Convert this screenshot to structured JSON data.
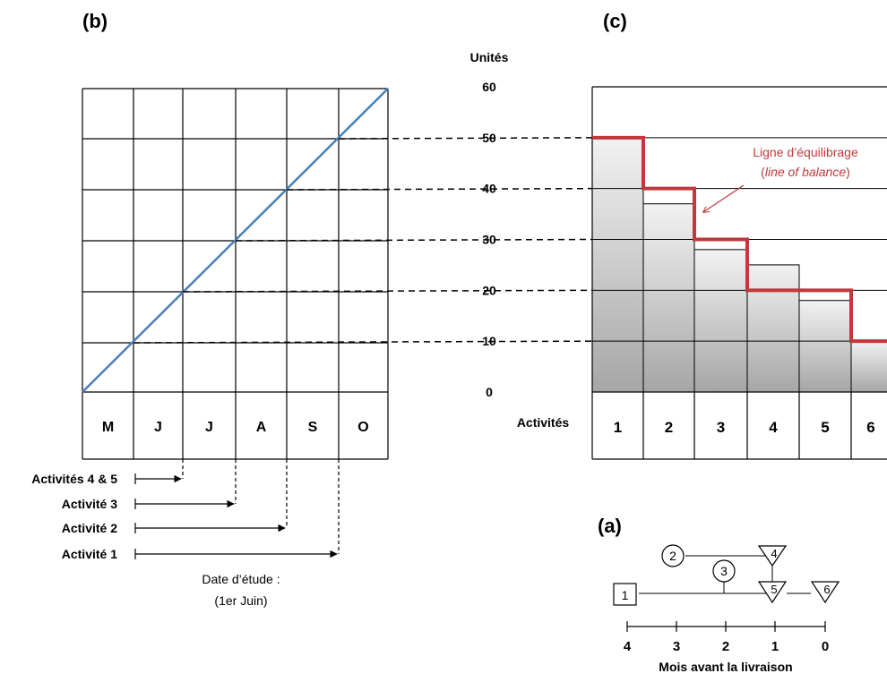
{
  "panel_b": {
    "label": "(b)",
    "months": [
      "M",
      "J",
      "J",
      "A",
      "S",
      "O"
    ],
    "activities": [
      {
        "label": "Activités 4 & 5"
      },
      {
        "label": "Activité 3"
      },
      {
        "label": "Activité 2"
      },
      {
        "label": "Activité 1"
      }
    ],
    "study_date_line1": "Date d’étude :",
    "study_date_line2": "(1er Juin)"
  },
  "panel_c": {
    "label": "(c)",
    "y_axis_title": "Unités",
    "y_ticks": [
      "60",
      "50",
      "40",
      "30",
      "20",
      "10",
      "0"
    ],
    "activities_label": "Activités",
    "activities": [
      "1",
      "2",
      "3",
      "4",
      "5",
      "6"
    ],
    "bar_values": [
      50,
      37,
      28,
      25,
      18,
      10
    ],
    "balance_values": [
      50,
      40,
      30,
      20,
      20,
      10
    ],
    "balance_label_line1": "Ligne d’équilibrage",
    "balance_label_line2_open": "(",
    "balance_label_line2_italic": "line of balance",
    "balance_label_line2_close": ")",
    "colors": {
      "balance": "#c0393b",
      "cumulative": "#4a7ebb"
    }
  },
  "panel_a": {
    "label": "(a)",
    "nodes": [
      "1",
      "2",
      "3",
      "4",
      "5",
      "6"
    ],
    "axis_ticks": [
      "4",
      "3",
      "2",
      "1",
      "0"
    ],
    "axis_title": "Mois avant la livraison"
  }
}
